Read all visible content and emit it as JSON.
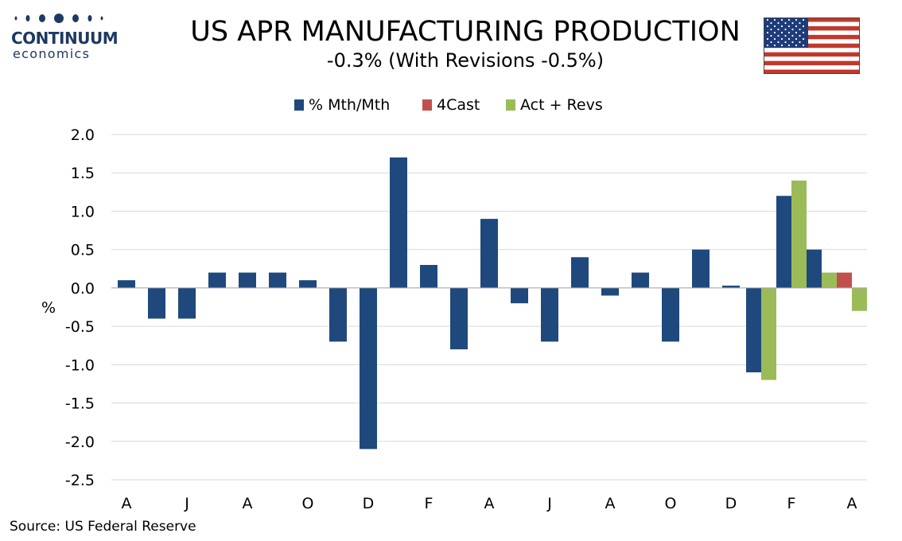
{
  "brand": {
    "name": "CONTINUUM",
    "sub": "economics",
    "color": "#1d3a63"
  },
  "header": {
    "title": "US APR MANUFACTURING PRODUCTION",
    "subtitle": "-0.3% (With Revisions -0.5%)"
  },
  "flag_icon": "us-flag-icon",
  "source": "Source: US Federal Reserve",
  "chart_data": {
    "type": "bar",
    "title": "US APR MANUFACTURING PRODUCTION",
    "subtitle": "-0.3% (With Revisions -0.5%)",
    "ylabel": "%",
    "xlabel": "",
    "ylim": [
      -2.5,
      2.0
    ],
    "yticks": [
      "2.0",
      "1.5",
      "1.0",
      "0.5",
      "0.0",
      "-0.5",
      "-1.0",
      "-1.5",
      "-2.0",
      "-2.5"
    ],
    "xtick_labels": [
      "A",
      "J",
      "A",
      "O",
      "D",
      "F",
      "A",
      "J",
      "A",
      "O",
      "D",
      "F",
      "A"
    ],
    "grid": true,
    "legend_position": "top-center",
    "colors": {
      "mth": "#1f497d",
      "forecast": "#c0504d",
      "revs": "#9bbb59",
      "grid": "#d9d9d9"
    },
    "series": [
      {
        "name": "% Mth/Mth",
        "values": [
          0.1,
          -0.4,
          -0.4,
          0.2,
          0.2,
          0.2,
          0.1,
          -0.7,
          -2.1,
          1.7,
          0.3,
          -0.8,
          0.9,
          -0.2,
          -0.7,
          0.4,
          -0.1,
          0.2,
          -0.7,
          0.5,
          0.03,
          -1.1,
          1.2,
          0.5,
          null
        ]
      },
      {
        "name": "4Cast",
        "values": [
          null,
          null,
          null,
          null,
          null,
          null,
          null,
          null,
          null,
          null,
          null,
          null,
          null,
          null,
          null,
          null,
          null,
          null,
          null,
          null,
          null,
          null,
          null,
          null,
          0.2
        ]
      },
      {
        "name": "Act + Revs",
        "values": [
          null,
          null,
          null,
          null,
          null,
          null,
          null,
          null,
          null,
          null,
          null,
          null,
          null,
          null,
          null,
          null,
          null,
          null,
          null,
          null,
          null,
          -1.2,
          1.4,
          0.2,
          -0.3
        ]
      }
    ]
  }
}
